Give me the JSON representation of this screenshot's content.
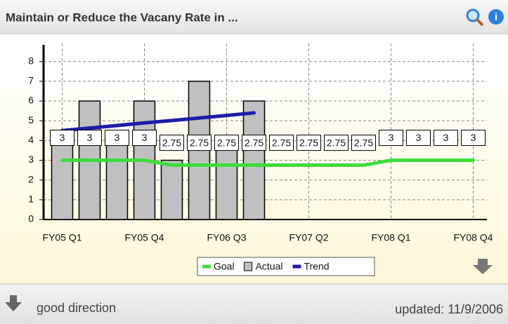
{
  "header": {
    "title": "Maintain or Reduce the Vacany Rate in ..."
  },
  "footer": {
    "direction": "good direction",
    "updated": "updated: 11/9/2006"
  },
  "chart_data": {
    "type": "bar",
    "categories": [
      "FY05 Q1",
      null,
      null,
      "FY05 Q4",
      null,
      null,
      "FY06 Q3",
      null,
      null,
      "FY07 Q2",
      null,
      null,
      "FY08 Q1",
      null,
      null,
      "FY08 Q4"
    ],
    "series": [
      {
        "name": "Goal",
        "type": "line",
        "color": "#3ddc3d",
        "data_labels": true,
        "values": [
          3,
          3,
          3,
          3,
          2.75,
          2.75,
          2.75,
          2.75,
          2.75,
          2.75,
          2.75,
          2.75,
          3,
          3,
          3,
          3
        ]
      },
      {
        "name": "Actual",
        "type": "bar",
        "color": "#c0c0c0",
        "values": [
          4,
          6,
          4,
          6,
          3,
          7,
          4,
          6,
          null,
          null,
          null,
          null,
          null,
          null,
          null,
          null
        ]
      },
      {
        "name": "Trend",
        "type": "line",
        "color": "#1c1ca8",
        "data_labels": false,
        "values": [
          4.5,
          4.63,
          4.76,
          4.89,
          5.01,
          5.14,
          5.27,
          5.4,
          null,
          null,
          null,
          null,
          null,
          null,
          null,
          null
        ]
      }
    ],
    "ylim": [
      0,
      8.7
    ],
    "yticks": [
      0,
      1,
      2,
      3,
      4,
      5,
      6,
      7,
      8
    ],
    "grid": true
  }
}
